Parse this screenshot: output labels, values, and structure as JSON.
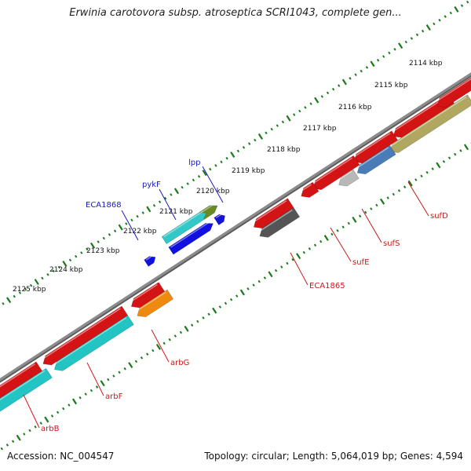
{
  "title": "Erwinia carotovora subsp. atroseptica SCRI1043, complete gen...",
  "accession": "Accession: NC_004547",
  "summary": "Topology: circular; Length: 5,064,019 bp; Genes: 4,594",
  "colors": {
    "backbone": "#8c8c8c",
    "tick_dots": "#1d7a1d",
    "label_strand_plus": "#1a1ac8",
    "label_strand_minus": "#c81a1a"
  },
  "scale_ticks": [
    {
      "kbp": 2114,
      "label": "2114 kbp"
    },
    {
      "kbp": 2115,
      "label": "2115 kbp"
    },
    {
      "kbp": 2116,
      "label": "2116 kbp"
    },
    {
      "kbp": 2117,
      "label": "2117 kbp"
    },
    {
      "kbp": 2118,
      "label": "2118 kbp"
    },
    {
      "kbp": 2119,
      "label": "2119 kbp"
    },
    {
      "kbp": 2120,
      "label": "2120 kbp"
    },
    {
      "kbp": 2121,
      "label": "2121 kbp"
    },
    {
      "kbp": 2122,
      "label": "2122 kbp"
    },
    {
      "kbp": 2123,
      "label": "2123 kbp"
    },
    {
      "kbp": 2124,
      "label": "2124 kbp"
    },
    {
      "kbp": 2125,
      "label": "2125 kbp"
    }
  ],
  "labelled_genes": [
    {
      "name": "lpp",
      "strand": "+"
    },
    {
      "name": "pykF",
      "strand": "+"
    },
    {
      "name": "ECA1868",
      "strand": "+"
    },
    {
      "name": "sufD",
      "strand": "-"
    },
    {
      "name": "sufS",
      "strand": "-"
    },
    {
      "name": "sufE",
      "strand": "-"
    },
    {
      "name": "ECA1865",
      "strand": "-"
    },
    {
      "name": "arbG",
      "strand": "-"
    },
    {
      "name": "arbF",
      "strand": "-"
    },
    {
      "name": "arbB",
      "strand": "-"
    }
  ]
}
